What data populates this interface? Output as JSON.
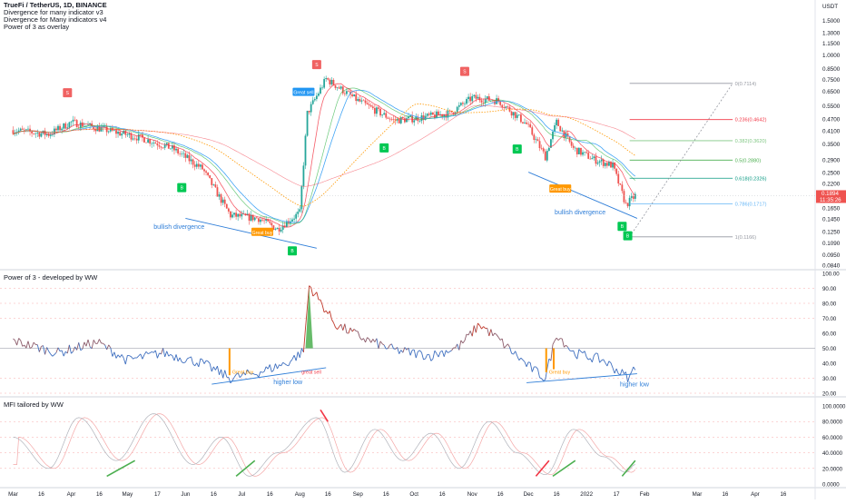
{
  "header": {
    "symbol": "TrueFi / TetherUS, 1D, BINANCE",
    "indicators": [
      "Divergence for many indicator v3",
      "Divergence for Many indicators v4",
      "Power of 3 as overlay"
    ]
  },
  "currency_label": "USDT",
  "colors": {
    "up": "#26a69a",
    "down": "#ef5350",
    "ema_red": "#f23645",
    "ma_blue": "#42a5f5",
    "ma_green": "#2fb344",
    "ma_orange": "#ff9800",
    "trend": "#2f7ed8",
    "rsi_line": "#3f6fbf",
    "signal_green": "#00c853",
    "signal_red": "#f06262",
    "great_buy": "#ff9800",
    "great_sell": "#2196f3"
  },
  "chart_data": [
    {
      "type": "candlestick",
      "title": "TrueFi / TetherUS, 1D, BINANCE",
      "y_scale": "log",
      "ylim": [
        0.08,
        1.9
      ],
      "y_ticks": [
        "1.5000",
        "1.3000",
        "1.1500",
        "1.0000",
        "0.8500",
        "0.7500",
        "0.6500",
        "0.5500",
        "0.4700",
        "0.4100",
        "0.3500",
        "0.2900",
        "0.2500",
        "0.2200",
        "0.1850",
        "0.1650",
        "0.1450",
        "0.1250",
        "0.1090",
        "0.0950",
        "0.0840"
      ],
      "last_price": "0.1894",
      "countdown": "11:35:26",
      "key_points": [
        {
          "date": "2021-03-01",
          "close": 0.41
        },
        {
          "date": "2021-03-20",
          "close": 0.39
        },
        {
          "date": "2021-04-01",
          "close": 0.45
        },
        {
          "date": "2021-04-20",
          "close": 0.41
        },
        {
          "date": "2021-05-10",
          "close": 0.37
        },
        {
          "date": "2021-05-25",
          "close": 0.33
        },
        {
          "date": "2021-06-10",
          "close": 0.26
        },
        {
          "date": "2021-06-25",
          "close": 0.15
        },
        {
          "date": "2021-07-10",
          "close": 0.145
        },
        {
          "date": "2021-07-20",
          "close": 0.128
        },
        {
          "date": "2021-08-01",
          "close": 0.155
        },
        {
          "date": "2021-08-05",
          "close": 0.5
        },
        {
          "date": "2021-08-15",
          "close": 0.75
        },
        {
          "date": "2021-09-01",
          "close": 0.58
        },
        {
          "date": "2021-09-20",
          "close": 0.46
        },
        {
          "date": "2021-10-01",
          "close": 0.47
        },
        {
          "date": "2021-10-20",
          "close": 0.5
        },
        {
          "date": "2021-11-01",
          "close": 0.6
        },
        {
          "date": "2021-11-15",
          "close": 0.58
        },
        {
          "date": "2021-11-30",
          "close": 0.44
        },
        {
          "date": "2021-12-10",
          "close": 0.3
        },
        {
          "date": "2021-12-16",
          "close": 0.45
        },
        {
          "date": "2021-12-25",
          "close": 0.33
        },
        {
          "date": "2022-01-05",
          "close": 0.29
        },
        {
          "date": "2022-01-15",
          "close": 0.27
        },
        {
          "date": "2022-01-22",
          "close": 0.17
        },
        {
          "date": "2022-01-27",
          "close": 0.1894
        }
      ],
      "fibonacci": [
        {
          "label": "0(0.7114)",
          "value": 0.7114
        },
        {
          "label": "0.236(0.4642)",
          "value": 0.4642
        },
        {
          "label": "0.382(0.3620)",
          "value": 0.362
        },
        {
          "label": "0.5(0.2880)",
          "value": 0.288
        },
        {
          "label": "0.618(0.2326)",
          "value": 0.2326
        },
        {
          "label": "0.786(0.1717)",
          "value": 0.1717
        },
        {
          "label": "1(0.1166)",
          "value": 0.1166
        }
      ],
      "annotations": [
        {
          "text": "Great sell",
          "date": "2021-08-01"
        },
        {
          "text": "Great buy",
          "date": "2021-07-15"
        },
        {
          "text": "Great buy",
          "date": "2021-12-18"
        },
        {
          "text": "bullish divergence",
          "date": "2021-05-15"
        },
        {
          "text": "bullish divergence",
          "date": "2021-12-15"
        }
      ],
      "signals": [
        {
          "type": "sell",
          "date": "2021-03-30"
        },
        {
          "type": "buy",
          "date": "2021-05-30"
        },
        {
          "type": "buy",
          "date": "2021-07-28"
        },
        {
          "type": "sell",
          "date": "2021-08-10"
        },
        {
          "type": "buy",
          "date": "2021-09-15"
        },
        {
          "type": "sell",
          "date": "2021-10-28"
        },
        {
          "type": "buy",
          "date": "2021-11-25"
        },
        {
          "type": "buy",
          "date": "2022-01-20"
        },
        {
          "type": "buy",
          "date": "2022-01-23"
        }
      ]
    },
    {
      "type": "line",
      "title": "Power of 3 - developed by WW",
      "ylim": [
        20,
        100
      ],
      "y_ticks": [
        "100.00",
        "90.00",
        "80.00",
        "70.00",
        "60.00",
        "50.00",
        "40.00",
        "30.00",
        "20.00"
      ],
      "x": [
        "2021-03-01",
        "2021-03-25",
        "2021-04-15",
        "2021-05-01",
        "2021-05-20",
        "2021-06-10",
        "2021-06-25",
        "2021-07-10",
        "2021-07-25",
        "2021-08-03",
        "2021-08-06",
        "2021-08-20",
        "2021-09-05",
        "2021-09-20",
        "2021-10-10",
        "2021-10-25",
        "2021-11-05",
        "2021-11-15",
        "2021-12-01",
        "2021-12-10",
        "2021-12-16",
        "2021-12-25",
        "2022-01-10",
        "2022-01-20",
        "2022-01-24",
        "2022-01-27"
      ],
      "values": [
        55,
        47,
        54,
        42,
        47,
        40,
        30,
        34,
        40,
        48,
        92,
        66,
        56,
        49,
        45,
        51,
        66,
        56,
        38,
        30,
        60,
        47,
        42,
        33,
        30,
        39
      ],
      "annotations": [
        {
          "text": "Great buy",
          "date": "2021-06-25"
        },
        {
          "text": "great sell",
          "date": "2021-08-01"
        },
        {
          "text": "Great buy",
          "date": "2021-12-12"
        },
        {
          "text": "higher low",
          "date": "2021-07-15"
        },
        {
          "text": "higher low",
          "date": "2022-01-15"
        }
      ]
    },
    {
      "type": "line",
      "title": "MFI tailored by WW",
      "ylim": [
        0,
        100
      ],
      "y_ticks": [
        "100.0000",
        "80.0000",
        "60.0000",
        "40.0000",
        "20.0000",
        "0.0000"
      ],
      "x": [
        "2021-03-01",
        "2021-03-20",
        "2021-04-05",
        "2021-04-25",
        "2021-05-15",
        "2021-06-05",
        "2021-06-20",
        "2021-07-05",
        "2021-07-20",
        "2021-08-10",
        "2021-08-25",
        "2021-09-10",
        "2021-09-25",
        "2021-10-10",
        "2021-10-25",
        "2021-11-10",
        "2021-11-25",
        "2021-12-10",
        "2021-12-25",
        "2022-01-10",
        "2022-01-22",
        "2022-01-27"
      ],
      "values": [
        60,
        20,
        85,
        30,
        90,
        25,
        60,
        10,
        40,
        85,
        15,
        70,
        30,
        65,
        20,
        80,
        40,
        12,
        70,
        35,
        15,
        25
      ]
    }
  ],
  "x_axis_labels": [
    "Mar",
    "16",
    "Apr",
    "16",
    "May",
    "17",
    "Jun",
    "16",
    "Jul",
    "16",
    "Aug",
    "16",
    "Sep",
    "16",
    "Oct",
    "16",
    "Nov",
    "16",
    "Dec",
    "16",
    "2022",
    "17",
    "Feb",
    "Mar",
    "16",
    "Apr",
    "16"
  ],
  "pane_labels": {
    "great_sell": "Great sell",
    "great_buy": "Great buy",
    "bullish_div": "bullish divergence",
    "higher_low": "higher low",
    "great_buy_osc": "Great buy",
    "great_sell_osc": "great sell"
  }
}
